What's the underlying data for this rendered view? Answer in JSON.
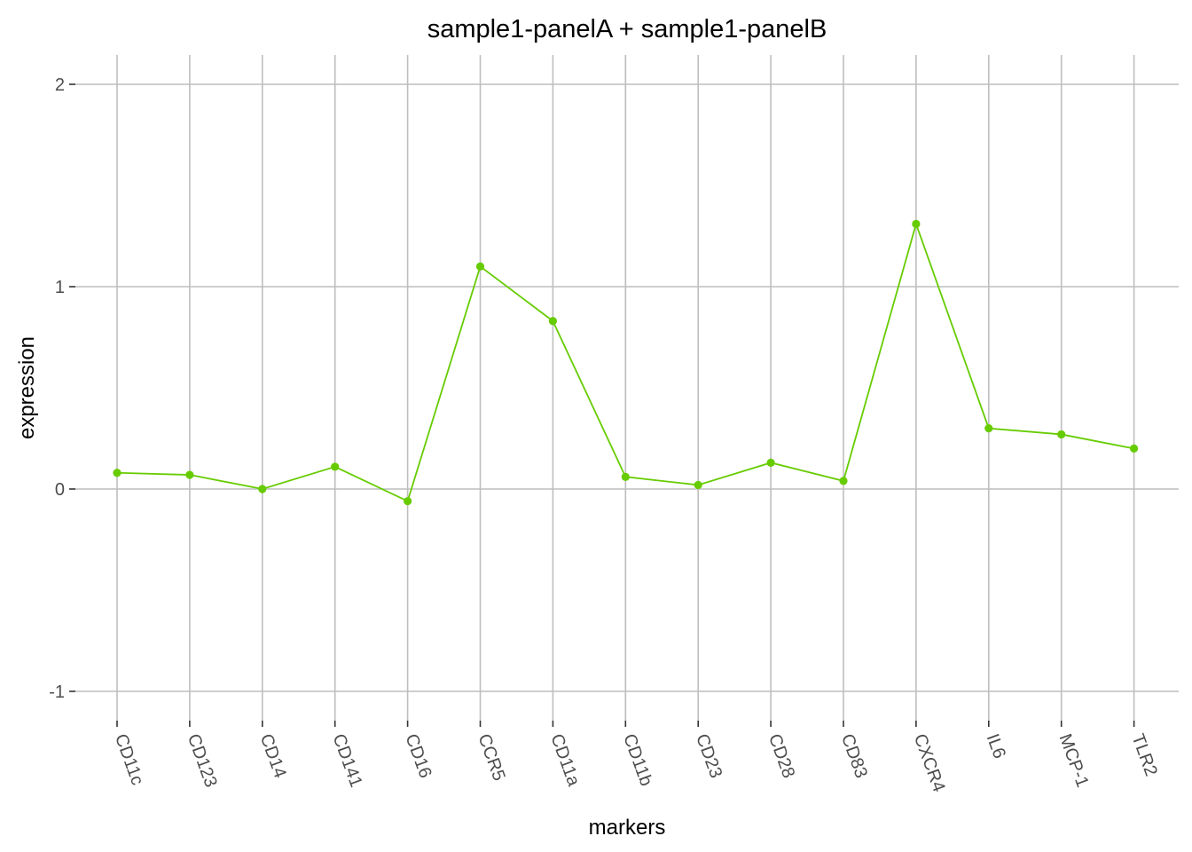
{
  "chart_data": {
    "type": "line",
    "title": "sample1-panelA + sample1-panelB",
    "xlabel": "markers",
    "ylabel": "expression",
    "categories": [
      "CD11c",
      "CD123",
      "CD14",
      "CD141",
      "CD16",
      "CCR5",
      "CD11a",
      "CD11b",
      "CD23",
      "CD28",
      "CD83",
      "CXCR4",
      "IL6",
      "MCP-1",
      "TLR2"
    ],
    "series": [
      {
        "values": [
          0.08,
          0.07,
          0.0,
          0.11,
          -0.06,
          1.1,
          0.83,
          0.06,
          0.02,
          0.13,
          0.04,
          1.31,
          0.3,
          0.27,
          0.2
        ]
      }
    ],
    "ylim": [
      -1.15,
      2.15
    ],
    "yticks": [
      -1,
      0,
      1,
      2
    ],
    "ytick_labels": [
      "-1",
      "0",
      "1",
      "2"
    ],
    "grid": true,
    "legend": "none",
    "colors": {
      "series": "#66CC00",
      "grid": "#bebebe",
      "tick_text": "#4d4d4d"
    }
  }
}
